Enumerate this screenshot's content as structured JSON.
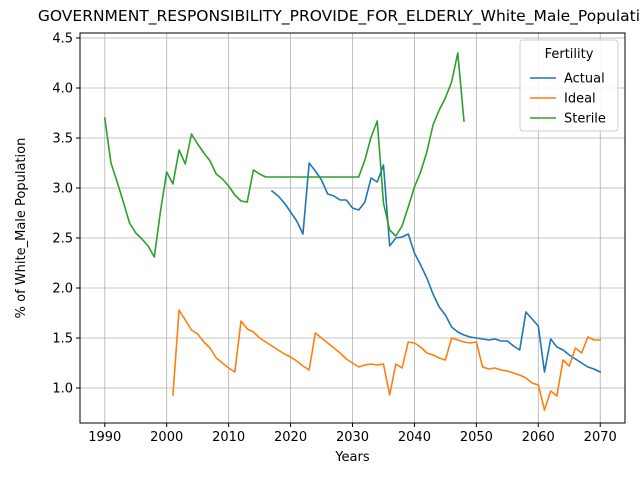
{
  "chart_data": {
    "type": "line",
    "title": "GOVERNMENT_RESPONSIBILITY_PROVIDE_FOR_ELDERLY_White_Male_Population_",
    "xlabel": "Years",
    "ylabel": "% of White_Male Population",
    "xlim": [
      1986,
      2074
    ],
    "ylim": [
      0.65,
      4.55
    ],
    "xticks": [
      1990,
      2000,
      2010,
      2020,
      2030,
      2040,
      2050,
      2060,
      2070
    ],
    "yticks": [
      1.0,
      1.5,
      2.0,
      2.5,
      3.0,
      3.5,
      4.0,
      4.5
    ],
    "grid": true,
    "legend": {
      "title": "Fertility",
      "placement": "top-right"
    },
    "series": [
      {
        "name": "Actual",
        "color": "#1f77b4",
        "x": [
          2017,
          2018,
          2019,
          2020,
          2021,
          2022,
          2023,
          2024,
          2025,
          2026,
          2027,
          2028,
          2029,
          2030,
          2031,
          2032,
          2033,
          2034,
          2035,
          2036,
          2037,
          2038,
          2039,
          2040,
          2041,
          2042,
          2043,
          2044,
          2045,
          2046,
          2047,
          2048,
          2049,
          2050,
          2051,
          2052,
          2053,
          2054,
          2055,
          2056,
          2057,
          2058,
          2059,
          2060,
          2061,
          2062,
          2063,
          2064,
          2065,
          2066,
          2067,
          2068,
          2069,
          2070
        ],
        "values": [
          2.97,
          2.92,
          2.85,
          2.76,
          2.67,
          2.54,
          3.25,
          3.17,
          3.08,
          2.94,
          2.92,
          2.88,
          2.88,
          2.8,
          2.78,
          2.86,
          3.1,
          3.06,
          3.23,
          2.42,
          2.5,
          2.51,
          2.54,
          2.35,
          2.23,
          2.1,
          1.94,
          1.81,
          1.73,
          1.61,
          1.56,
          1.53,
          1.51,
          1.5,
          1.49,
          1.48,
          1.49,
          1.47,
          1.47,
          1.42,
          1.38,
          1.76,
          1.69,
          1.62,
          1.16,
          1.49,
          1.41,
          1.38,
          1.33,
          1.29,
          1.25,
          1.21,
          1.19,
          1.16
        ]
      },
      {
        "name": "Ideal",
        "color": "#ff7f0e",
        "x": [
          2001,
          2002,
          2003,
          2004,
          2005,
          2006,
          2007,
          2008,
          2009,
          2010,
          2011,
          2012,
          2013,
          2014,
          2015,
          2016,
          2017,
          2018,
          2019,
          2020,
          2021,
          2022,
          2023,
          2024,
          2025,
          2026,
          2027,
          2028,
          2029,
          2030,
          2031,
          2032,
          2033,
          2034,
          2035,
          2036,
          2037,
          2038,
          2039,
          2040,
          2041,
          2042,
          2043,
          2044,
          2045,
          2046,
          2047,
          2048,
          2049,
          2050,
          2051,
          2052,
          2053,
          2054,
          2055,
          2056,
          2057,
          2058,
          2059,
          2060,
          2061,
          2062,
          2063,
          2064,
          2065,
          2066,
          2067,
          2068,
          2069,
          2070
        ],
        "values": [
          0.93,
          1.78,
          1.68,
          1.58,
          1.54,
          1.46,
          1.4,
          1.3,
          1.25,
          1.2,
          1.16,
          1.67,
          1.59,
          1.56,
          1.5,
          1.46,
          1.42,
          1.38,
          1.34,
          1.31,
          1.27,
          1.22,
          1.18,
          1.55,
          1.5,
          1.45,
          1.4,
          1.35,
          1.29,
          1.25,
          1.21,
          1.23,
          1.24,
          1.23,
          1.24,
          0.93,
          1.24,
          1.2,
          1.46,
          1.45,
          1.41,
          1.35,
          1.33,
          1.3,
          1.28,
          1.5,
          1.48,
          1.46,
          1.45,
          1.46,
          1.21,
          1.19,
          1.2,
          1.18,
          1.17,
          1.15,
          1.13,
          1.1,
          1.05,
          1.03,
          0.78,
          0.97,
          0.92,
          1.28,
          1.22,
          1.4,
          1.35,
          1.51,
          1.48,
          1.48
        ]
      },
      {
        "name": "Sterile",
        "color": "#2ca02c",
        "x": [
          1990,
          1991,
          1992,
          1993,
          1994,
          1995,
          1996,
          1997,
          1998,
          1999,
          2000,
          2001,
          2002,
          2003,
          2004,
          2005,
          2006,
          2007,
          2008,
          2009,
          2010,
          2011,
          2012,
          2013,
          2014,
          2015,
          2016,
          2017,
          2018,
          2019,
          2020,
          2021,
          2022,
          2023,
          2024,
          2025,
          2026,
          2027,
          2028,
          2029,
          2030,
          2031,
          2032,
          2033,
          2034,
          2035,
          2036,
          2037,
          2038,
          2039,
          2040,
          2041,
          2042,
          2043,
          2044,
          2045,
          2046,
          2047,
          2048
        ],
        "values": [
          3.7,
          3.25,
          3.06,
          2.86,
          2.65,
          2.55,
          2.49,
          2.42,
          2.31,
          2.77,
          3.16,
          3.04,
          3.38,
          3.24,
          3.54,
          3.44,
          3.35,
          3.27,
          3.14,
          3.09,
          3.02,
          2.93,
          2.87,
          2.86,
          3.18,
          3.14,
          3.11,
          3.11,
          3.11,
          3.11,
          3.11,
          3.11,
          3.11,
          3.11,
          3.11,
          3.11,
          3.11,
          3.11,
          3.11,
          3.11,
          3.11,
          3.11,
          3.28,
          3.51,
          3.67,
          2.85,
          2.58,
          2.52,
          2.62,
          2.81,
          3.01,
          3.16,
          3.36,
          3.63,
          3.78,
          3.9,
          4.06,
          4.35,
          3.67
        ]
      }
    ]
  }
}
